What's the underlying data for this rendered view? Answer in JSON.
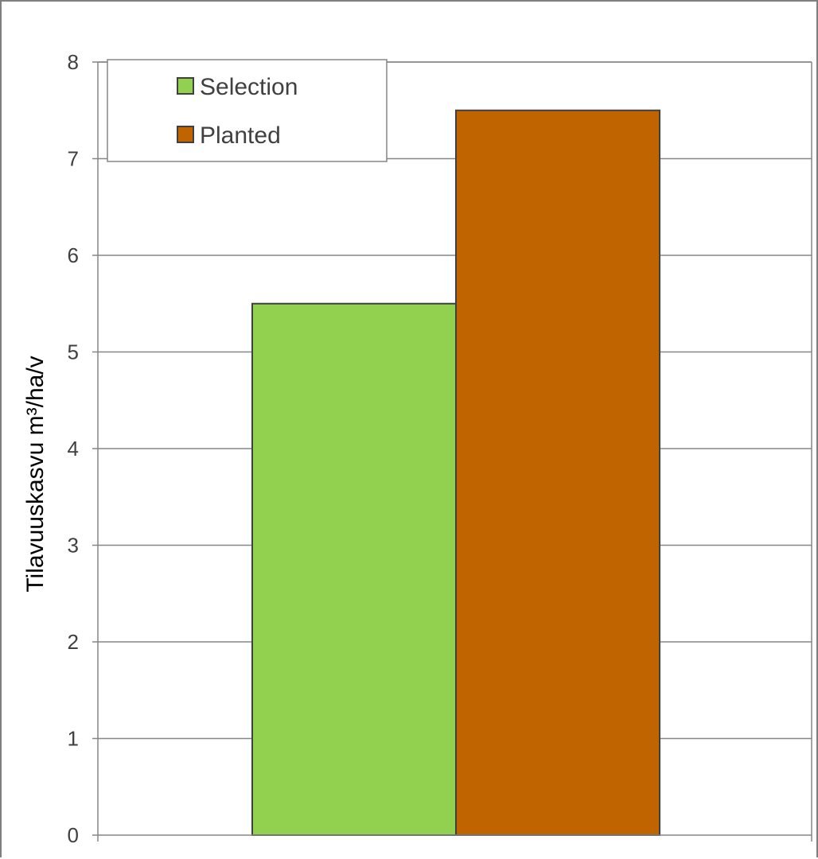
{
  "chart_data": {
    "type": "bar",
    "categories": [
      ""
    ],
    "series": [
      {
        "name": "Selection",
        "values": [
          5.5
        ],
        "color": "#92d050"
      },
      {
        "name": "Planted",
        "values": [
          7.5
        ],
        "color": "#c06400"
      }
    ],
    "title": "",
    "xlabel": "",
    "ylabel": "Tilavuuskasvu m³/ha/v",
    "ylim": [
      0,
      8
    ],
    "yticks": [
      0,
      1,
      2,
      3,
      4,
      5,
      6,
      7,
      8
    ],
    "grid": true,
    "legend_position": "top-left"
  }
}
